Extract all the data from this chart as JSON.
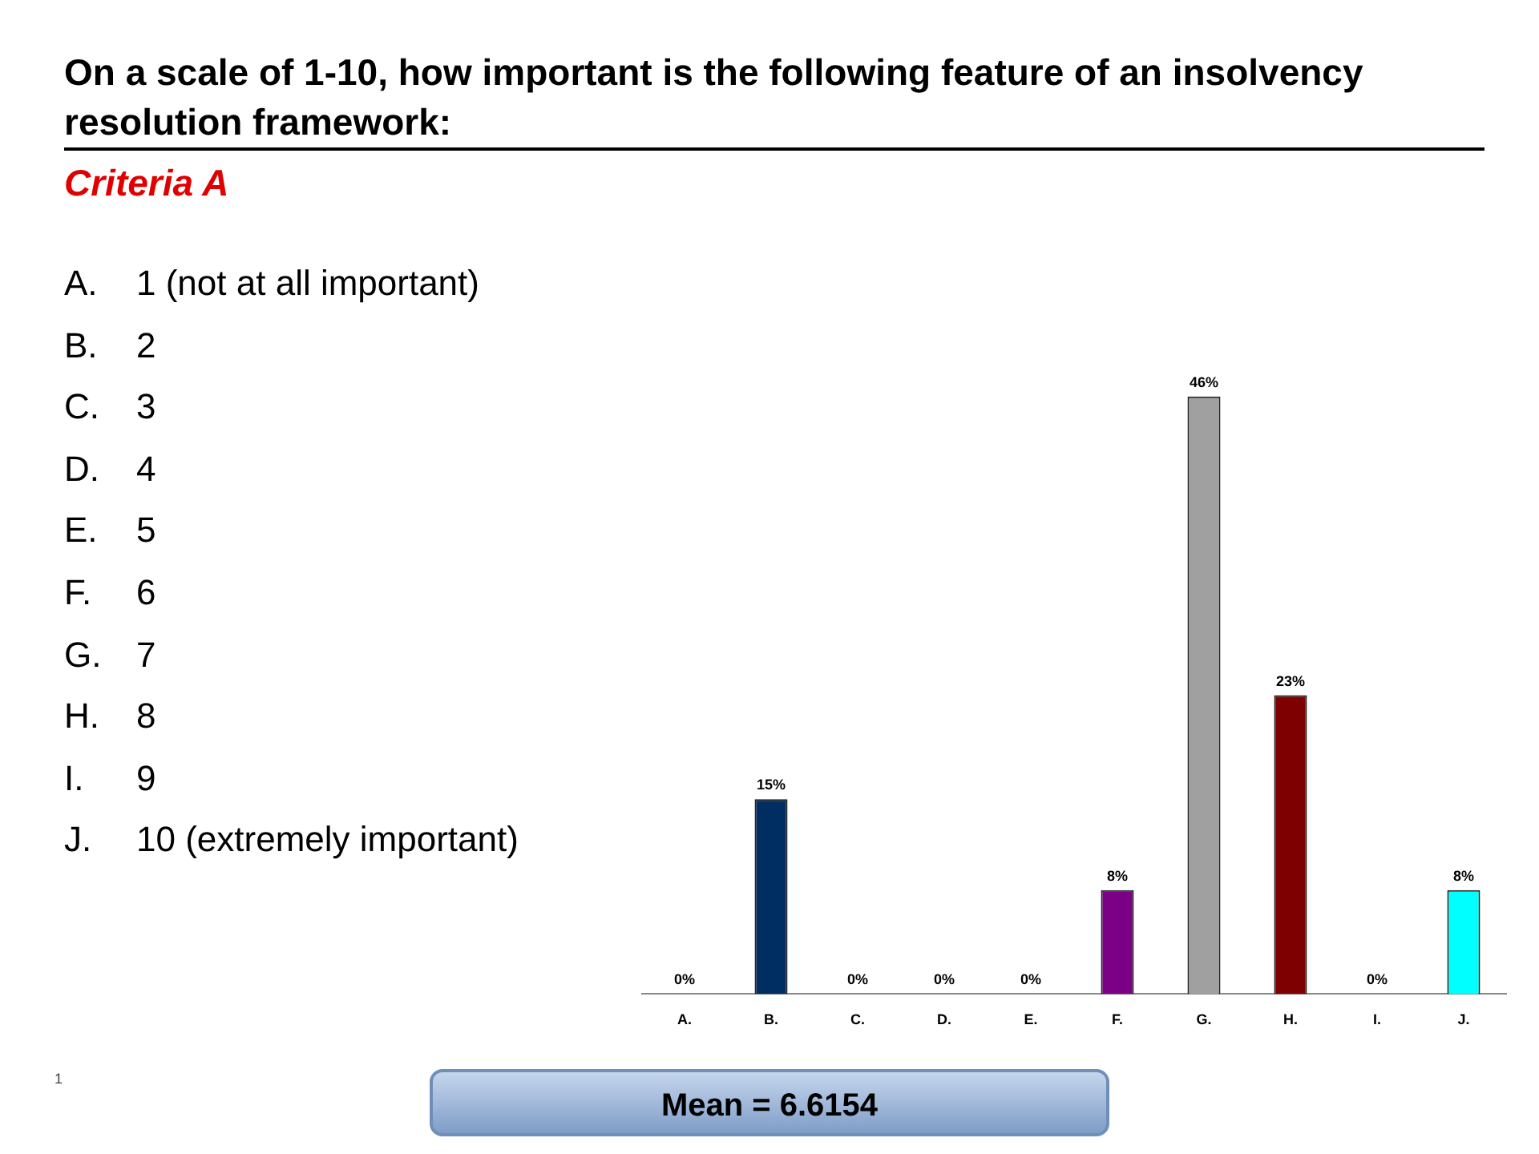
{
  "chart_data": {
    "type": "bar",
    "title": "On a scale of 1-10, how important is the following feature of an insolvency resolution framework:",
    "subtitle": "Criteria A",
    "categories": [
      "A.",
      "B.",
      "C.",
      "D.",
      "E.",
      "F.",
      "G.",
      "H.",
      "I.",
      "J."
    ],
    "values": [
      0,
      15,
      0,
      0,
      0,
      8,
      46,
      23,
      0,
      8
    ],
    "value_labels": [
      "0%",
      "15%",
      "0%",
      "0%",
      "0%",
      "8%",
      "46%",
      "23%",
      "0%",
      "8%"
    ],
    "colors": [
      "#c00000",
      "#002d62",
      "#00b050",
      "#e6d800",
      "#e46c0a",
      "#7b0085",
      "#a0a0a0",
      "#7f0000",
      "#000000",
      "#00ffff"
    ],
    "grid": false,
    "legend": false,
    "annotations": [
      "A. 1 (not at all important)",
      "B. 2",
      "C. 3",
      "D. 4",
      "E. 5",
      "F. 6",
      "G. 7",
      "H. 8",
      "I. 9",
      "J. 10 (extremely important)",
      "1",
      "Mean = 6.6154"
    ]
  }
}
